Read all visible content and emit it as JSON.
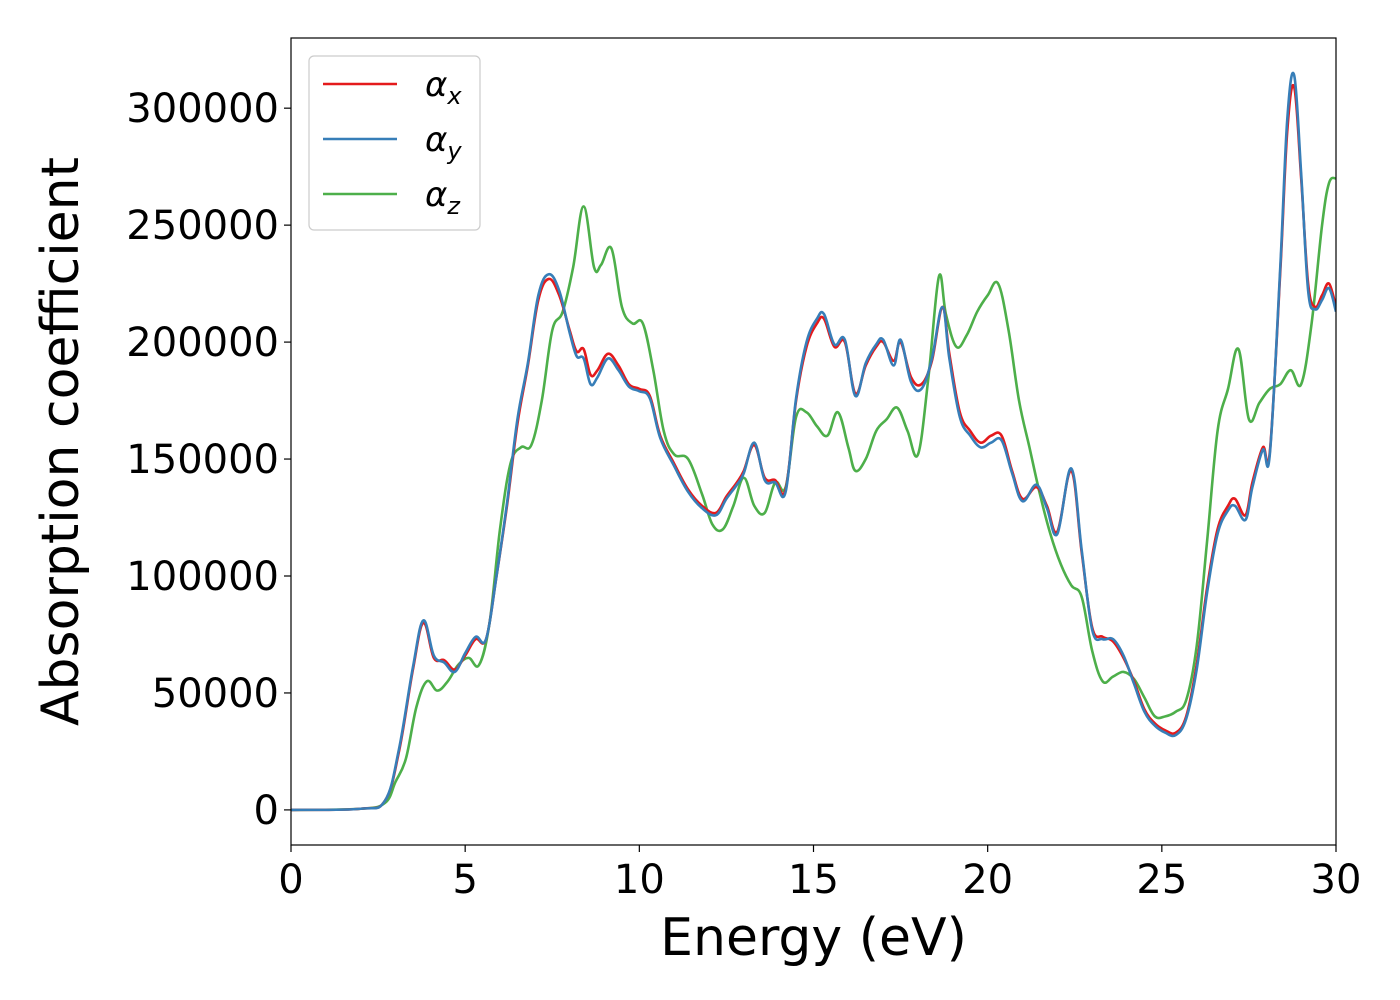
{
  "chart_data": {
    "type": "line",
    "xlabel": "Energy (eV)",
    "ylabel": "Absorption coefficient",
    "xlim": [
      0,
      30
    ],
    "ylim": [
      -15000,
      330000
    ],
    "xticks": [
      0,
      5,
      10,
      15,
      20,
      25,
      30
    ],
    "xtick_labels": [
      "0",
      "5",
      "10",
      "15",
      "20",
      "25",
      "30"
    ],
    "yticks": [
      0,
      50000,
      100000,
      150000,
      200000,
      250000,
      300000
    ],
    "ytick_labels": [
      "0",
      "50000",
      "100000",
      "150000",
      "200000",
      "250000",
      "300000"
    ],
    "grid": false,
    "legend_position": "top-left",
    "series": [
      {
        "name": "α",
        "subscript": "x",
        "color": "#e41a1c",
        "x": [
          0,
          2,
          2.7,
          3.1,
          3.5,
          3.8,
          4.1,
          4.4,
          4.7,
          5.0,
          5.3,
          5.6,
          5.9,
          6.2,
          6.5,
          6.8,
          7.1,
          7.4,
          7.7,
          8.0,
          8.2,
          8.4,
          8.6,
          8.8,
          9.1,
          9.4,
          9.7,
          10.0,
          10.3,
          10.6,
          11.0,
          11.4,
          11.8,
          12.2,
          12.5,
          12.8,
          13.0,
          13.3,
          13.6,
          13.9,
          14.2,
          14.5,
          14.8,
          15.1,
          15.3,
          15.6,
          15.9,
          16.2,
          16.5,
          16.8,
          17.0,
          17.3,
          17.5,
          17.8,
          18.1,
          18.4,
          18.7,
          18.9,
          19.2,
          19.5,
          19.8,
          20.1,
          20.4,
          20.7,
          21.0,
          21.4,
          21.7,
          22.0,
          22.4,
          22.7,
          23.0,
          23.3,
          23.6,
          23.9,
          24.2,
          24.5,
          24.8,
          25.1,
          25.4,
          25.7,
          26.0,
          26.3,
          26.6,
          26.9,
          27.1,
          27.4,
          27.6,
          27.9,
          28.1,
          28.4,
          28.6,
          28.8,
          29.0,
          29.2,
          29.4,
          29.6,
          29.8,
          30.0
        ],
        "y": [
          0,
          500,
          4000,
          25000,
          60000,
          80000,
          65000,
          64000,
          60000,
          66000,
          73000,
          73000,
          100000,
          130000,
          165000,
          190000,
          218000,
          227000,
          220000,
          205000,
          196000,
          197000,
          186000,
          188000,
          195000,
          190000,
          182000,
          180000,
          177000,
          160000,
          148000,
          137000,
          130000,
          127000,
          134000,
          140000,
          145000,
          156000,
          142000,
          141000,
          137000,
          175000,
          198000,
          208000,
          210000,
          198000,
          200000,
          178000,
          190000,
          198000,
          200000,
          192000,
          200000,
          185000,
          182000,
          192000,
          215000,
          195000,
          170000,
          162000,
          157000,
          160000,
          160000,
          145000,
          133000,
          138000,
          130000,
          119000,
          145000,
          110000,
          78000,
          74000,
          72000,
          65000,
          55000,
          43000,
          37000,
          34000,
          33000,
          40000,
          62000,
          95000,
          120000,
          130000,
          133000,
          126000,
          140000,
          155000,
          153000,
          230000,
          290000,
          309000,
          270000,
          225000,
          215000,
          220000,
          225000,
          215000
        ]
      },
      {
        "name": "α",
        "subscript": "y",
        "color": "#377eb8",
        "x": [
          0,
          2,
          2.7,
          3.1,
          3.5,
          3.8,
          4.1,
          4.4,
          4.7,
          5.0,
          5.3,
          5.6,
          5.9,
          6.2,
          6.5,
          6.8,
          7.1,
          7.4,
          7.7,
          8.0,
          8.2,
          8.4,
          8.6,
          8.8,
          9.1,
          9.4,
          9.7,
          10.0,
          10.3,
          10.6,
          11.0,
          11.4,
          11.8,
          12.2,
          12.5,
          12.8,
          13.0,
          13.3,
          13.6,
          13.9,
          14.2,
          14.5,
          14.8,
          15.1,
          15.3,
          15.6,
          15.9,
          16.2,
          16.5,
          16.8,
          17.0,
          17.3,
          17.5,
          17.8,
          18.1,
          18.4,
          18.7,
          18.9,
          19.2,
          19.5,
          19.8,
          20.1,
          20.4,
          20.7,
          21.0,
          21.4,
          21.7,
          22.0,
          22.4,
          22.7,
          23.0,
          23.3,
          23.6,
          23.9,
          24.2,
          24.5,
          24.8,
          25.1,
          25.4,
          25.7,
          26.0,
          26.3,
          26.6,
          26.9,
          27.1,
          27.4,
          27.6,
          27.9,
          28.1,
          28.4,
          28.6,
          28.8,
          29.0,
          29.2,
          29.4,
          29.6,
          29.8,
          30.0
        ],
        "y": [
          0,
          500,
          4000,
          26000,
          61000,
          81000,
          66000,
          63000,
          59000,
          67000,
          74000,
          73000,
          100000,
          131000,
          167000,
          191000,
          220000,
          229000,
          222000,
          204000,
          194000,
          193000,
          182000,
          185000,
          193000,
          188000,
          181000,
          179000,
          176000,
          159000,
          147000,
          136000,
          129000,
          126000,
          133000,
          139000,
          144000,
          157000,
          141000,
          140000,
          136000,
          176000,
          200000,
          210000,
          212000,
          199000,
          201000,
          177000,
          191000,
          199000,
          201000,
          190000,
          201000,
          183000,
          180000,
          193000,
          215000,
          193000,
          168000,
          160000,
          155000,
          157000,
          158000,
          144000,
          132000,
          139000,
          129000,
          118000,
          146000,
          111000,
          77000,
          73000,
          73000,
          66000,
          54000,
          42000,
          36000,
          33000,
          32000,
          39000,
          60000,
          93000,
          118000,
          128000,
          130000,
          124000,
          138000,
          154000,
          152000,
          232000,
          295000,
          314000,
          272000,
          222000,
          214000,
          218000,
          223000,
          213000
        ]
      },
      {
        "name": "α",
        "subscript": "z",
        "color": "#4daf4a",
        "x": [
          0,
          2,
          2.7,
          3.0,
          3.3,
          3.6,
          3.9,
          4.2,
          4.5,
          4.8,
          5.1,
          5.4,
          5.7,
          6.0,
          6.3,
          6.6,
          6.9,
          7.2,
          7.5,
          7.8,
          8.1,
          8.4,
          8.7,
          8.9,
          9.2,
          9.5,
          9.8,
          10.1,
          10.4,
          10.7,
          11.0,
          11.4,
          11.8,
          12.1,
          12.4,
          12.7,
          13.0,
          13.3,
          13.6,
          13.9,
          14.2,
          14.5,
          14.8,
          15.1,
          15.4,
          15.7,
          16.0,
          16.2,
          16.5,
          16.8,
          17.1,
          17.4,
          17.7,
          18.0,
          18.3,
          18.6,
          18.8,
          19.1,
          19.4,
          19.7,
          20.0,
          20.3,
          20.6,
          20.9,
          21.2,
          21.5,
          21.8,
          22.1,
          22.4,
          22.7,
          23.0,
          23.3,
          23.6,
          23.9,
          24.2,
          24.5,
          24.8,
          25.1,
          25.4,
          25.7,
          26.0,
          26.3,
          26.6,
          26.9,
          27.2,
          27.5,
          27.8,
          28.1,
          28.4,
          28.7,
          29.0,
          29.3,
          29.6,
          29.8,
          30.0
        ],
        "y": [
          0,
          500,
          3000,
          12000,
          22000,
          44000,
          55000,
          51000,
          55000,
          62000,
          65000,
          62000,
          80000,
          120000,
          148000,
          155000,
          156000,
          175000,
          205000,
          213000,
          232000,
          258000,
          232000,
          233000,
          240000,
          215000,
          208000,
          208000,
          188000,
          162000,
          152000,
          150000,
          135000,
          122000,
          120000,
          130000,
          142000,
          130000,
          127000,
          140000,
          138000,
          168000,
          170000,
          164000,
          160000,
          170000,
          155000,
          145000,
          150000,
          162000,
          167000,
          172000,
          162000,
          152000,
          185000,
          228000,
          212000,
          198000,
          203000,
          213000,
          220000,
          225000,
          205000,
          175000,
          155000,
          135000,
          118000,
          105000,
          96000,
          91000,
          68000,
          55000,
          57000,
          59000,
          56000,
          48000,
          40000,
          40000,
          42000,
          47000,
          70000,
          115000,
          162000,
          180000,
          197000,
          167000,
          174000,
          180000,
          182000,
          188000,
          182000,
          208000,
          250000,
          268000,
          270000
        ]
      }
    ]
  }
}
